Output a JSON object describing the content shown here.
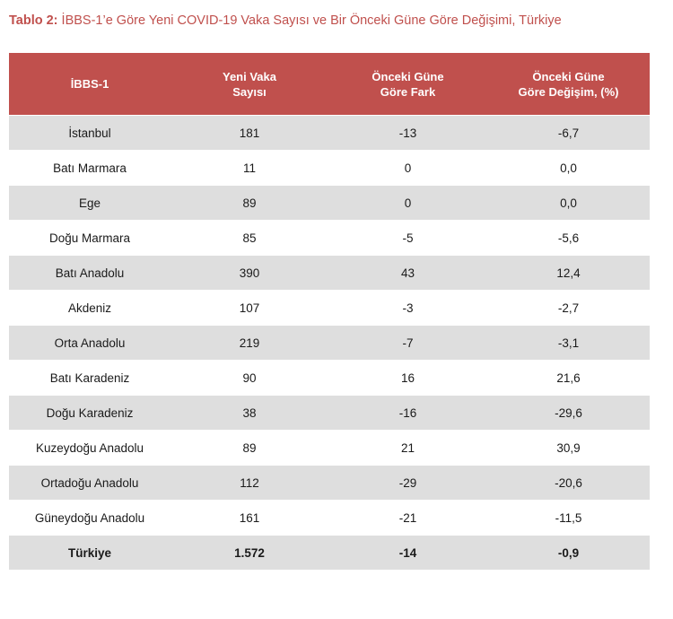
{
  "caption": {
    "label": "Tablo 2:",
    "text": "İBBS-1’e Göre Yeni COVID-19 Vaka Sayısı ve Bir Önceki Güne Göre Değişimi, Türkiye"
  },
  "table": {
    "headers": [
      "İBBS-1",
      "Yeni Vaka\nSayısı",
      "Önceki Güne\nGöre Fark",
      "Önceki Güne\nGöre Değişim, (%)"
    ],
    "rows": [
      [
        "İstanbul",
        "181",
        "-13",
        "-6,7"
      ],
      [
        "Batı Marmara",
        "11",
        "0",
        "0,0"
      ],
      [
        "Ege",
        "89",
        "0",
        "0,0"
      ],
      [
        "Doğu Marmara",
        "85",
        "-5",
        "-5,6"
      ],
      [
        "Batı Anadolu",
        "390",
        "43",
        "12,4"
      ],
      [
        "Akdeniz",
        "107",
        "-3",
        "-2,7"
      ],
      [
        "Orta Anadolu",
        "219",
        "-7",
        "-3,1"
      ],
      [
        "Batı Karadeniz",
        "90",
        "16",
        "21,6"
      ],
      [
        "Doğu Karadeniz",
        "38",
        "-16",
        "-29,6"
      ],
      [
        "Kuzeydoğu Anadolu",
        "89",
        "21",
        "30,9"
      ],
      [
        "Ortadoğu Anadolu",
        "112",
        "-29",
        "-20,6"
      ],
      [
        "Güneydoğu Anadolu",
        "161",
        "-21",
        "-11,5"
      ]
    ],
    "total": [
      "Türkiye",
      "1.572",
      "-14",
      "-0,9"
    ]
  },
  "colors": {
    "accent": "#c0504d",
    "row_shade": "#dedede",
    "header_text": "#ffffff"
  }
}
